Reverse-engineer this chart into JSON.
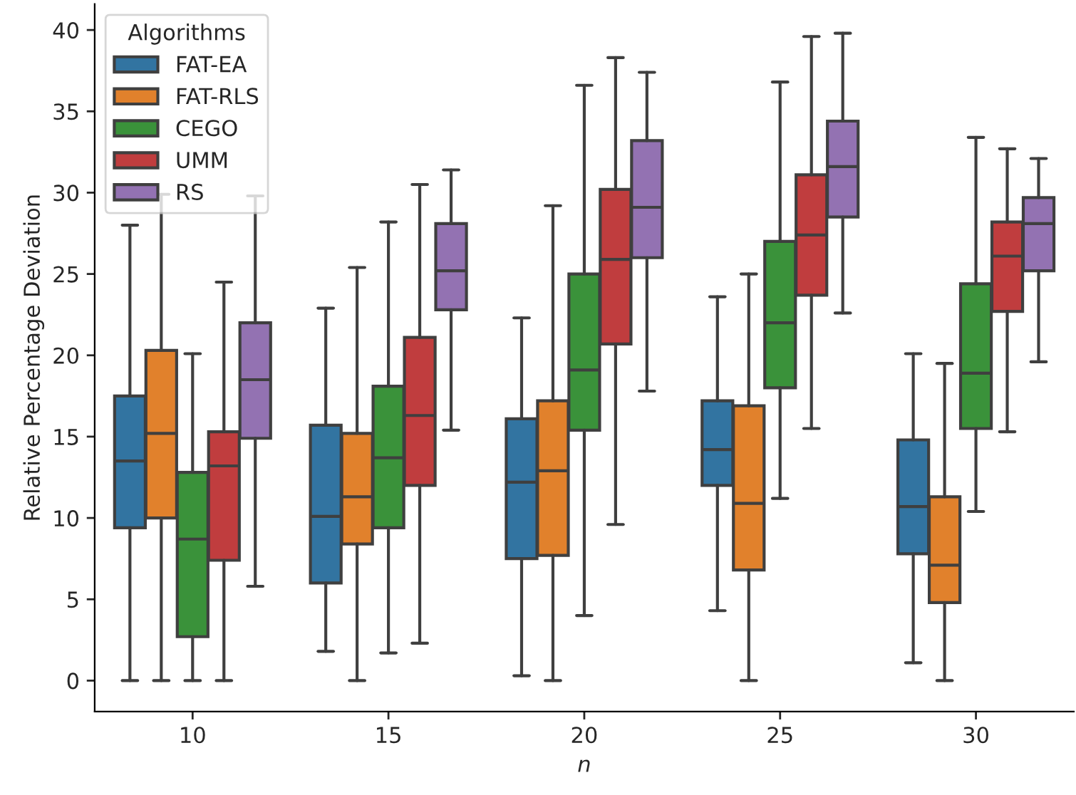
{
  "chart_data": {
    "type": "box",
    "xlabel": "n",
    "ylabel": "Relative Percentage Deviation",
    "legend_title": "Algorithms",
    "legend": "top left",
    "grid": false,
    "categories": [
      "10",
      "15",
      "20",
      "25",
      "30"
    ],
    "ylim": [
      -1.9,
      41.6
    ],
    "yticks": [
      0,
      5,
      10,
      15,
      20,
      25,
      30,
      35,
      40
    ],
    "series": [
      {
        "name": "FAT-EA",
        "color": "#3274a1",
        "boxes": [
          {
            "low": 0,
            "q1": 9.4,
            "median": 13.5,
            "q3": 17.5,
            "high": 28.0
          },
          {
            "low": 1.8,
            "q1": 6.0,
            "median": 10.1,
            "q3": 15.7,
            "high": 22.9
          },
          {
            "low": 0.3,
            "q1": 7.5,
            "median": 12.2,
            "q3": 16.1,
            "high": 22.3
          },
          {
            "low": 4.3,
            "q1": 12.0,
            "median": 14.2,
            "q3": 17.2,
            "high": 23.6
          },
          {
            "low": 1.1,
            "q1": 7.8,
            "median": 10.7,
            "q3": 14.8,
            "high": 20.1
          }
        ]
      },
      {
        "name": "FAT-RLS",
        "color": "#e1812c",
        "boxes": [
          {
            "low": 0,
            "q1": 10.0,
            "median": 15.2,
            "q3": 20.3,
            "high": 29.9
          },
          {
            "low": 0,
            "q1": 8.4,
            "median": 11.3,
            "q3": 15.2,
            "high": 25.4
          },
          {
            "low": 0,
            "q1": 7.7,
            "median": 12.9,
            "q3": 17.2,
            "high": 29.2
          },
          {
            "low": 0,
            "q1": 6.8,
            "median": 10.9,
            "q3": 16.9,
            "high": 25.0
          },
          {
            "low": 0,
            "q1": 4.8,
            "median": 7.1,
            "q3": 11.3,
            "high": 19.5
          }
        ]
      },
      {
        "name": "CEGO",
        "color": "#3a923a",
        "boxes": [
          {
            "low": 0,
            "q1": 2.7,
            "median": 8.7,
            "q3": 12.8,
            "high": 20.1
          },
          {
            "low": 1.7,
            "q1": 9.4,
            "median": 13.7,
            "q3": 18.1,
            "high": 28.2
          },
          {
            "low": 4.0,
            "q1": 15.4,
            "median": 19.1,
            "q3": 25.0,
            "high": 36.6
          },
          {
            "low": 11.2,
            "q1": 18.0,
            "median": 22.0,
            "q3": 27.0,
            "high": 36.8
          },
          {
            "low": 10.4,
            "q1": 15.5,
            "median": 18.9,
            "q3": 24.4,
            "high": 33.4
          }
        ]
      },
      {
        "name": "UMM",
        "color": "#c03d3e",
        "boxes": [
          {
            "low": 0,
            "q1": 7.4,
            "median": 13.2,
            "q3": 15.3,
            "high": 24.5
          },
          {
            "low": 2.3,
            "q1": 12.0,
            "median": 16.3,
            "q3": 21.1,
            "high": 30.5
          },
          {
            "low": 9.6,
            "q1": 20.7,
            "median": 25.9,
            "q3": 30.2,
            "high": 38.3
          },
          {
            "low": 15.5,
            "q1": 23.7,
            "median": 27.4,
            "q3": 31.1,
            "high": 39.6
          },
          {
            "low": 15.3,
            "q1": 22.7,
            "median": 26.1,
            "q3": 28.2,
            "high": 32.7
          }
        ]
      },
      {
        "name": "RS",
        "color": "#9372b2",
        "boxes": [
          {
            "low": 5.8,
            "q1": 14.9,
            "median": 18.5,
            "q3": 22.0,
            "high": 29.8
          },
          {
            "low": 15.4,
            "q1": 22.8,
            "median": 25.2,
            "q3": 28.1,
            "high": 31.4
          },
          {
            "low": 17.8,
            "q1": 26.0,
            "median": 29.1,
            "q3": 33.2,
            "high": 37.4
          },
          {
            "low": 22.6,
            "q1": 28.5,
            "median": 31.6,
            "q3": 34.4,
            "high": 39.8
          },
          {
            "low": 19.6,
            "q1": 25.2,
            "median": 28.1,
            "q3": 29.7,
            "high": 32.1
          }
        ]
      }
    ]
  }
}
